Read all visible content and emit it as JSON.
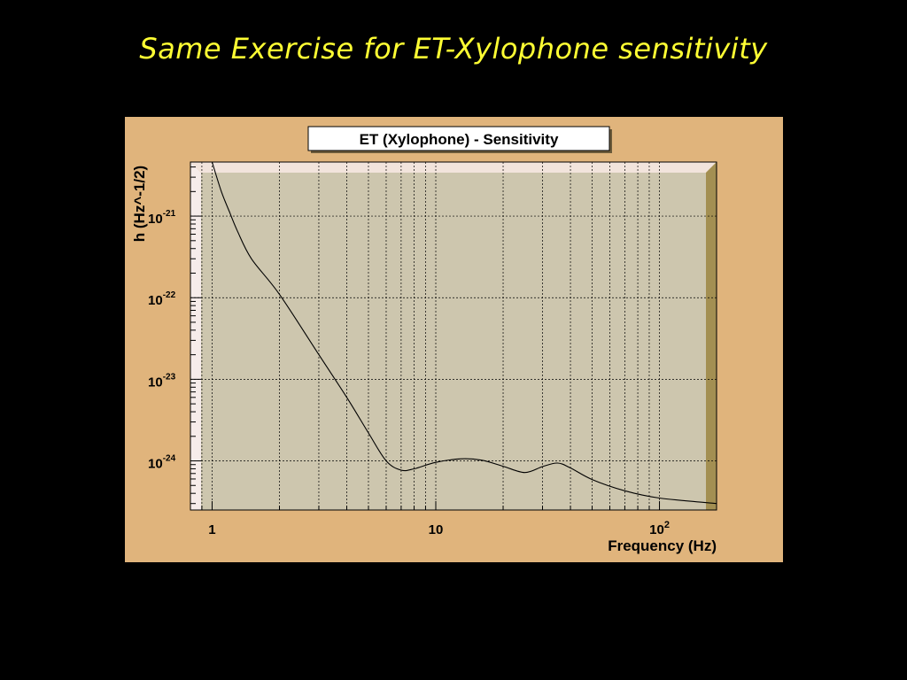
{
  "slide": {
    "title": "Same Exercise for ET-Xylophone sensitivity"
  },
  "colors": {
    "background": "#000000",
    "slide_title": "#ffff33",
    "panel": "#e0b47c",
    "plot_area": "#cdc6ae",
    "frame_top": "#f2e4dc",
    "frame_right": "#a38f52",
    "curve": "#000000"
  },
  "chart_data": {
    "type": "line",
    "title": "ET (Xylophone) - Sensitivity",
    "xlabel": "Frequency (Hz)",
    "ylabel": "h (Hz^-1/2)",
    "x_scale": "log",
    "y_scale": "log",
    "xlim": [
      0.8,
      180
    ],
    "ylim": [
      2.5e-25,
      4.6e-21
    ],
    "grid": true,
    "x_ticks": [
      {
        "value": 1,
        "base": "1",
        "exp": ""
      },
      {
        "value": 10,
        "base": "10",
        "exp": ""
      },
      {
        "value": 100,
        "base": "10",
        "exp": "2"
      }
    ],
    "y_ticks": [
      {
        "value": 1e-21,
        "base": "10",
        "exp": "-21"
      },
      {
        "value": 1e-22,
        "base": "10",
        "exp": "-22"
      },
      {
        "value": 1e-23,
        "base": "10",
        "exp": "-23"
      },
      {
        "value": 1e-24,
        "base": "10",
        "exp": "-24"
      }
    ],
    "series": [
      {
        "x": [
          1.0,
          1.1,
          1.2,
          1.3,
          1.5,
          2.0,
          3.0,
          4.0,
          5.0,
          6.0,
          7.0,
          8.0,
          10.0,
          13.0,
          16.0,
          20.0,
          25.0,
          30.0,
          35.0,
          40.0,
          50.0,
          70.0,
          100.0,
          180.0
        ],
        "y": [
          4.6e-21,
          2e-21,
          1.1e-21,
          6.5e-22,
          3e-22,
          1.1e-22,
          2e-23,
          6e-24,
          2.2e-24,
          1e-24,
          7.7e-25,
          8e-25,
          9.6e-25,
          1.06e-24,
          1.02e-24,
          8.6e-25,
          7.2e-25,
          8.5e-25,
          9.4e-25,
          8.2e-25,
          5.9e-25,
          4.3e-25,
          3.5e-25,
          3e-25
        ]
      }
    ]
  }
}
